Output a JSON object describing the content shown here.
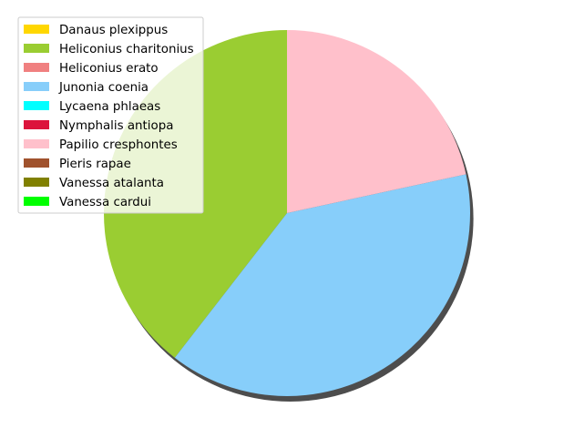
{
  "chart_data": {
    "type": "pie",
    "title": "",
    "shadow": true,
    "start_angle_deg": 90,
    "direction": "counterclockwise",
    "legend_position": "top-left",
    "categories": [
      "Danaus plexippus",
      "Heliconius charitonius",
      "Heliconius erato",
      "Junonia coenia",
      "Lycaena phlaeas",
      "Nymphalis antiopa",
      "Papilio cresphontes",
      "Pieris rapae",
      "Vanessa atalanta",
      "Vanessa cardui"
    ],
    "values": [
      0,
      39.5,
      0,
      38.9,
      0,
      0,
      21.6,
      0,
      0,
      0
    ],
    "colors": [
      "#FFD700",
      "#9ACD32",
      "#F08080",
      "#87CEFA",
      "#00FFFF",
      "#DC143C",
      "#FFC0CB",
      "#A0522D",
      "#808000",
      "#00FF00"
    ]
  }
}
